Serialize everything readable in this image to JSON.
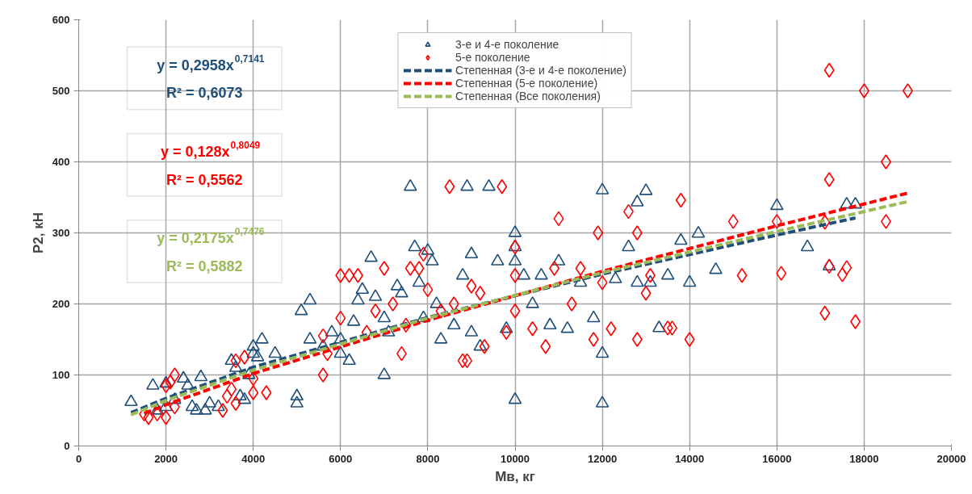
{
  "chart_data": {
    "type": "scatter",
    "xlabel": "Мв, кг",
    "ylabel": "P2, кН",
    "xlim": [
      0,
      20000
    ],
    "ylim": [
      0,
      600
    ],
    "xticks": [
      0,
      2000,
      4000,
      6000,
      8000,
      10000,
      12000,
      14000,
      16000,
      18000,
      20000
    ],
    "yticks": [
      0,
      100,
      200,
      300,
      400,
      500,
      600
    ],
    "grid": true,
    "legend": "top",
    "annotations": [
      "y = 0,2958x$^{0,7141}$",
      "R² = 0,6073",
      "y = 0,128x$^{0,8049}$",
      "R² = 0,5562",
      "y = 0,2175x$^{0,7476}$",
      "R² = 0,5882"
    ],
    "series": [
      {
        "name": "3-е и 4-е поколение",
        "marker": "triangle",
        "color": "#1f4e79",
        "x": [
          1200,
          1700,
          1800,
          2000,
          2000,
          2200,
          2400,
          2500,
          2600,
          2700,
          2800,
          2900,
          3000,
          3200,
          3500,
          3600,
          3700,
          3800,
          3900,
          4000,
          4000,
          4100,
          4200,
          4500,
          5000,
          5000,
          5100,
          5300,
          5300,
          5600,
          5800,
          6000,
          6000,
          6200,
          6300,
          6400,
          6500,
          6700,
          6800,
          7000,
          7000,
          7100,
          7300,
          7400,
          7600,
          7700,
          7800,
          7900,
          8000,
          8100,
          8200,
          8300,
          8600,
          8800,
          8900,
          9000,
          9000,
          9200,
          9400,
          9600,
          9800,
          10000,
          10000,
          10000,
          10000,
          10200,
          10400,
          10600,
          10800,
          11000,
          11200,
          11500,
          11800,
          12000,
          12000,
          12000,
          12300,
          12600,
          12800,
          12800,
          13000,
          13100,
          13300,
          13500,
          13800,
          14000,
          14200,
          14600,
          16000,
          16700,
          17200,
          17600,
          17800
        ],
        "values": [
          62,
          85,
          50,
          88,
          55,
          65,
          95,
          85,
          55,
          50,
          97,
          50,
          60,
          55,
          120,
          110,
          70,
          65,
          100,
          130,
          140,
          125,
          150,
          130,
          70,
          60,
          190,
          205,
          150,
          140,
          160,
          130,
          150,
          120,
          175,
          205,
          220,
          265,
          210,
          100,
          180,
          160,
          225,
          215,
          365,
          280,
          230,
          180,
          275,
          260,
          200,
          150,
          170,
          240,
          365,
          270,
          160,
          140,
          365,
          260,
          165,
          300,
          280,
          65,
          260,
          240,
          200,
          240,
          170,
          260,
          165,
          230,
          180,
          360,
          130,
          60,
          235,
          280,
          230,
          343,
          359,
          230,
          166,
          240,
          289,
          230,
          299,
          248,
          338,
          280,
          253,
          340,
          340
        ]
      },
      {
        "name": "5-е поколение",
        "marker": "diamond",
        "color": "#ff0000",
        "x": [
          1500,
          1600,
          1800,
          2000,
          2000,
          2100,
          2200,
          2200,
          3300,
          3400,
          3500,
          3600,
          3600,
          3800,
          4000,
          4000,
          4300,
          5600,
          5700,
          5600,
          6000,
          6000,
          6200,
          6400,
          6600,
          6800,
          7000,
          7200,
          7400,
          7500,
          7600,
          7800,
          7900,
          8000,
          8300,
          8500,
          8600,
          8800,
          8900,
          9000,
          9200,
          9300,
          9700,
          9800,
          10000,
          10000,
          10000,
          10400,
          10700,
          10900,
          11000,
          11300,
          11500,
          11800,
          11900,
          12000,
          12200,
          12600,
          12800,
          12800,
          13000,
          13100,
          13500,
          13600,
          13800,
          14000,
          15000,
          15200,
          16000,
          16100,
          17100,
          17100,
          17200,
          17200,
          17200,
          17500,
          17600,
          17800,
          18000,
          18500,
          18500,
          19000
        ],
        "values": [
          45,
          40,
          45,
          40,
          85,
          90,
          100,
          55,
          50,
          70,
          80,
          60,
          120,
          125,
          75,
          95,
          75,
          100,
          130,
          155,
          180,
          240,
          240,
          240,
          160,
          190,
          250,
          200,
          130,
          170,
          250,
          250,
          270,
          220,
          190,
          365,
          200,
          120,
          120,
          225,
          215,
          140,
          365,
          160,
          280,
          240,
          190,
          165,
          140,
          250,
          320,
          200,
          250,
          150,
          300,
          230,
          165,
          330,
          300,
          150,
          215,
          240,
          166,
          166,
          346,
          150,
          316,
          240,
          316,
          243,
          187,
          315,
          529,
          375,
          253,
          241,
          251,
          175,
          500,
          400,
          316,
          500
        ]
      },
      {
        "name": "Степенная (3-е и 4-е поколение)",
        "type": "line",
        "marker": "none",
        "line_style": "dashed",
        "color": "#1f4e79",
        "x": [
          1200,
          2000,
          4000,
          8000,
          12000,
          16000,
          17800
        ],
        "values": [
          47,
          67,
          111,
          181,
          242,
          297,
          321
        ]
      },
      {
        "name": "Степенная (5-е поколение)",
        "type": "line",
        "marker": "none",
        "line_style": "dashed",
        "color": "#ff0000",
        "x": [
          1500,
          2000,
          4000,
          8000,
          12000,
          16000,
          19000
        ],
        "values": [
          46,
          58,
          102,
          177,
          246,
          310,
          356
        ]
      },
      {
        "name": "Степенная (Все поколения)",
        "type": "line",
        "marker": "none",
        "line_style": "dashed",
        "color": "#9bbb59",
        "x": [
          1200,
          2000,
          4000,
          8000,
          12000,
          16000,
          19000
        ],
        "values": [
          44,
          64,
          107,
          180,
          244,
          302,
          344
        ]
      }
    ]
  }
}
